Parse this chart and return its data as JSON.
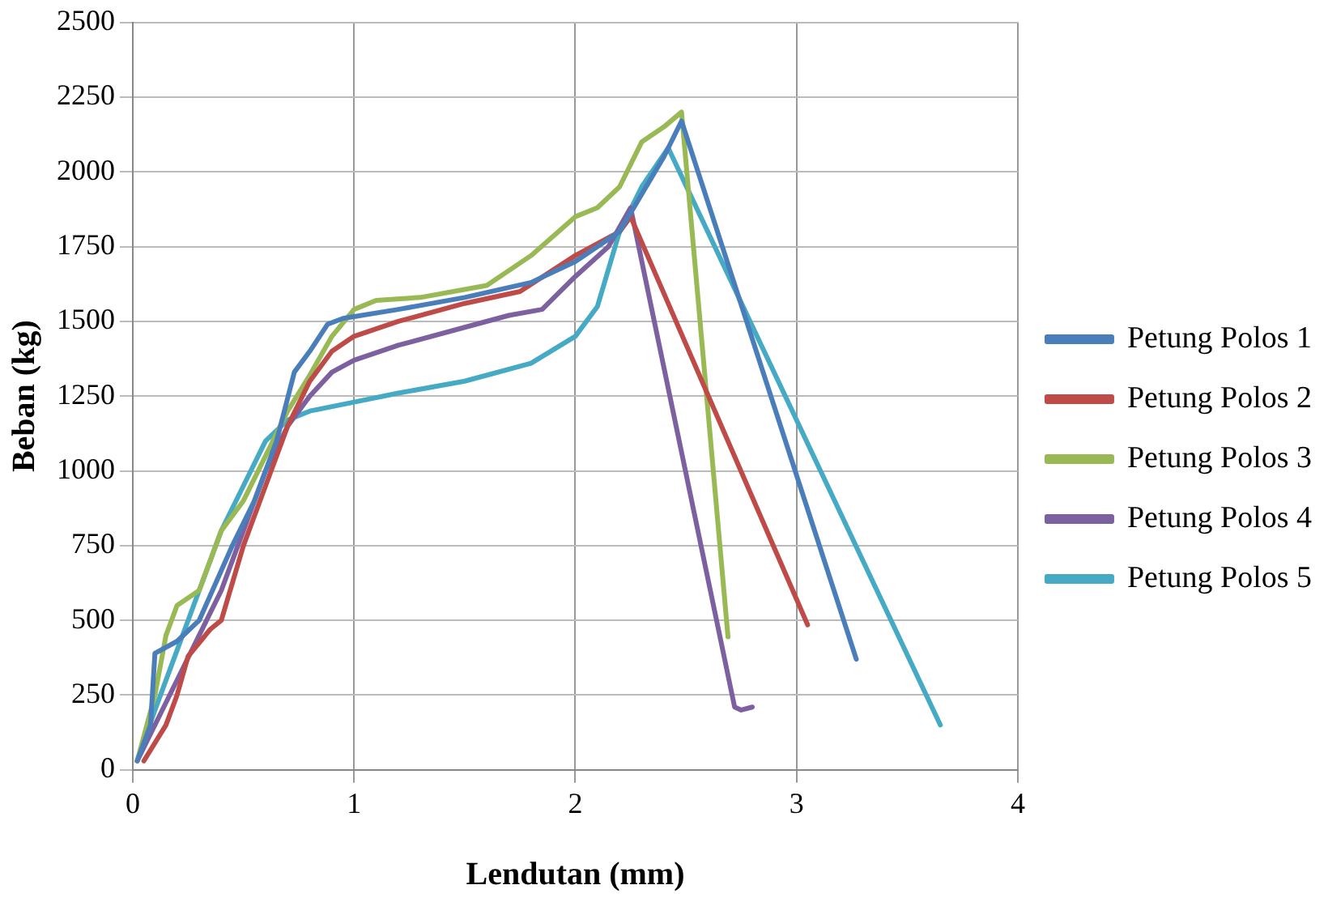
{
  "chart_data": {
    "type": "line",
    "xlabel": "Lendutan (mm)",
    "ylabel": "Beban (kg)",
    "xlim": [
      0,
      4
    ],
    "xticks": [
      0,
      1,
      2,
      3,
      4
    ],
    "ylim": [
      0,
      2500
    ],
    "yticks": [
      0,
      250,
      500,
      750,
      1000,
      1250,
      1500,
      1750,
      2000,
      2250,
      2500
    ],
    "grid": true,
    "legend": "right",
    "marker": "none",
    "line_style": "solid",
    "series": [
      {
        "name": "Petung Polos 1",
        "color": "#4a7ebb",
        "x": [
          0.02,
          0.08,
          0.1,
          0.2,
          0.3,
          0.45,
          0.55,
          0.65,
          0.73,
          0.8,
          0.88,
          0.95,
          1.2,
          1.5,
          1.8,
          2.0,
          2.2,
          2.4,
          2.48,
          3.27
        ],
        "values": [
          30,
          150,
          390,
          430,
          500,
          750,
          900,
          1100,
          1330,
          1400,
          1490,
          1510,
          1540,
          1580,
          1630,
          1700,
          1800,
          2050,
          2170,
          370
        ]
      },
      {
        "name": "Petung Polos 2",
        "color": "#be4b48",
        "x": [
          0.05,
          0.15,
          0.2,
          0.25,
          0.35,
          0.4,
          0.5,
          0.6,
          0.7,
          0.8,
          0.9,
          1.0,
          1.2,
          1.5,
          1.75,
          2.0,
          2.2,
          2.25,
          3.05
        ],
        "values": [
          30,
          150,
          250,
          380,
          470,
          500,
          750,
          950,
          1150,
          1300,
          1400,
          1450,
          1500,
          1560,
          1600,
          1720,
          1800,
          1850,
          485
        ]
      },
      {
        "name": "Petung Polos 3",
        "color": "#98b954",
        "x": [
          0.02,
          0.1,
          0.15,
          0.2,
          0.3,
          0.4,
          0.5,
          0.6,
          0.7,
          0.8,
          0.9,
          1.0,
          1.1,
          1.3,
          1.6,
          1.8,
          2.0,
          2.1,
          2.2,
          2.3,
          2.4,
          2.48,
          2.69
        ],
        "values": [
          30,
          250,
          450,
          550,
          600,
          800,
          900,
          1050,
          1200,
          1320,
          1450,
          1540,
          1570,
          1580,
          1620,
          1720,
          1850,
          1880,
          1950,
          2100,
          2150,
          2200,
          445
        ]
      },
      {
        "name": "Petung Polos 4",
        "color": "#7d60a0",
        "x": [
          0.02,
          0.2,
          0.3,
          0.4,
          0.5,
          0.6,
          0.7,
          0.8,
          0.9,
          1.0,
          1.2,
          1.5,
          1.7,
          1.85,
          2.0,
          2.15,
          2.25,
          2.72,
          2.75,
          2.8
        ],
        "values": [
          30,
          300,
          450,
          600,
          800,
          1000,
          1150,
          1250,
          1330,
          1370,
          1420,
          1480,
          1520,
          1540,
          1650,
          1750,
          1880,
          210,
          200,
          210
        ]
      },
      {
        "name": "Petung Polos 5",
        "color": "#46aac5",
        "x": [
          0.02,
          0.1,
          0.2,
          0.3,
          0.4,
          0.5,
          0.6,
          0.7,
          0.8,
          1.0,
          1.2,
          1.5,
          1.8,
          2.0,
          2.1,
          2.2,
          2.3,
          2.42,
          3.65
        ],
        "values": [
          30,
          200,
          400,
          600,
          800,
          950,
          1100,
          1170,
          1200,
          1230,
          1260,
          1300,
          1360,
          1450,
          1550,
          1800,
          1950,
          2080,
          150
        ]
      }
    ]
  }
}
